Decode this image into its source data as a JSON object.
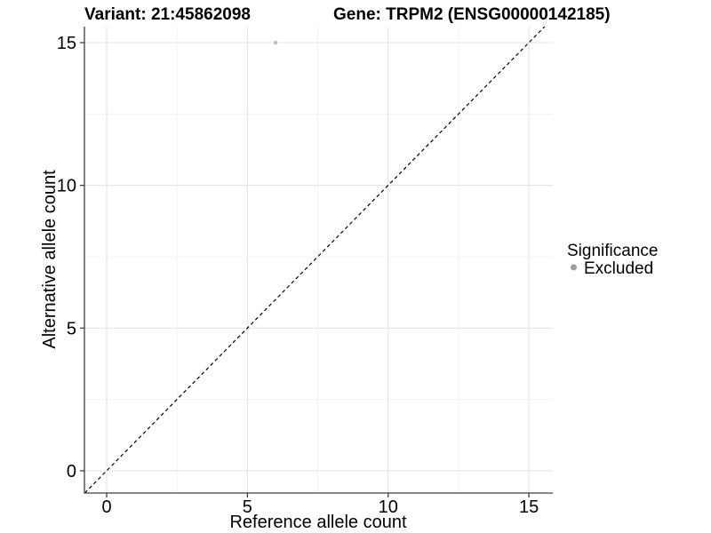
{
  "chart_data": {
    "type": "scatter",
    "title_variant": "Variant: 21:45862098",
    "title_gene": "Gene: TRPM2 (ENSG00000142185)",
    "xlabel": "Reference allele count",
    "ylabel": "Alternative allele count",
    "xlim": [
      -0.79,
      15.85
    ],
    "ylim": [
      -0.78,
      15.56
    ],
    "x_ticks": [
      0,
      5,
      10,
      15
    ],
    "y_ticks": [
      0,
      5,
      10,
      15
    ],
    "x_minor_ticks": [
      2.5,
      7.5,
      12.5
    ],
    "y_minor_ticks": [
      2.5,
      7.5,
      12.5
    ],
    "grid": "major+minor",
    "points": [
      {
        "x": 6,
        "y": 15,
        "significance": "Excluded",
        "color": "#bebebe",
        "radius": 2.3
      }
    ],
    "reference_line": {
      "type": "identity y=x",
      "style": "dashed",
      "color": "#000000"
    },
    "legend": {
      "title": "Significance",
      "position": "right",
      "items": [
        {
          "label": "Excluded",
          "color": "#9e9e9e"
        }
      ]
    },
    "colors": {
      "background": "#ffffff",
      "grid_major": "#e3e3e3",
      "grid_minor": "#f0f0f0",
      "axis_line": "#404040",
      "tick": "#333333",
      "text": "#000000"
    }
  }
}
